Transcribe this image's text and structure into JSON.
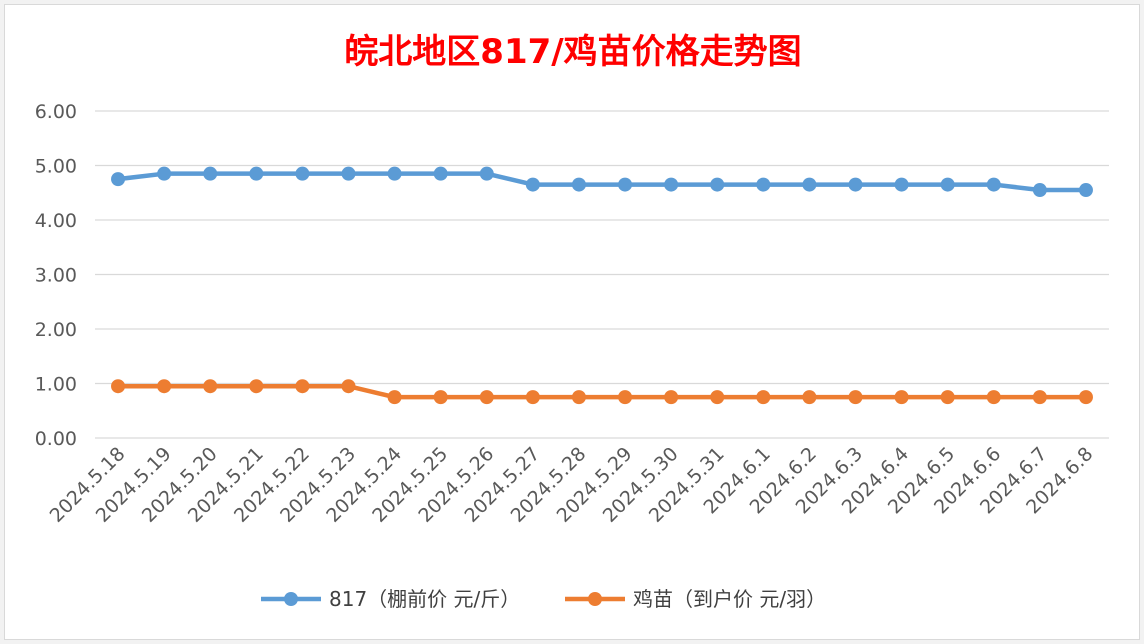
{
  "chart_data": {
    "type": "line",
    "title": "皖北地区817/鸡苗价格走势图",
    "xlabel": "",
    "ylabel": "",
    "ylim": [
      0,
      6
    ],
    "yticks": [
      "0.00",
      "1.00",
      "2.00",
      "3.00",
      "4.00",
      "5.00",
      "6.00"
    ],
    "grid": "horizontal",
    "legend_position": "bottom",
    "categories": [
      "2024.5.18",
      "2024.5.19",
      "2024.5.20",
      "2024.5.21",
      "2024.5.22",
      "2024.5.23",
      "2024.5.24",
      "2024.5.25",
      "2024.5.26",
      "2024.5.27",
      "2024.5.28",
      "2024.5.29",
      "2024.5.30",
      "2024.5.31",
      "2024.6.1",
      "2024.6.2",
      "2024.6.3",
      "2024.6.4",
      "2024.6.5",
      "2024.6.6",
      "2024.6.7",
      "2024.6.8"
    ],
    "series": [
      {
        "name": "817（棚前价 元/斤）",
        "color": "#5b9bd5",
        "values": [
          4.75,
          4.85,
          4.85,
          4.85,
          4.85,
          4.85,
          4.85,
          4.85,
          4.85,
          4.65,
          4.65,
          4.65,
          4.65,
          4.65,
          4.65,
          4.65,
          4.65,
          4.65,
          4.65,
          4.65,
          4.55,
          4.55
        ]
      },
      {
        "name": "鸡苗（到户价 元/羽）",
        "color": "#ed7d31",
        "values": [
          0.95,
          0.95,
          0.95,
          0.95,
          0.95,
          0.95,
          0.75,
          0.75,
          0.75,
          0.75,
          0.75,
          0.75,
          0.75,
          0.75,
          0.75,
          0.75,
          0.75,
          0.75,
          0.75,
          0.75,
          0.75,
          0.75
        ]
      }
    ]
  }
}
